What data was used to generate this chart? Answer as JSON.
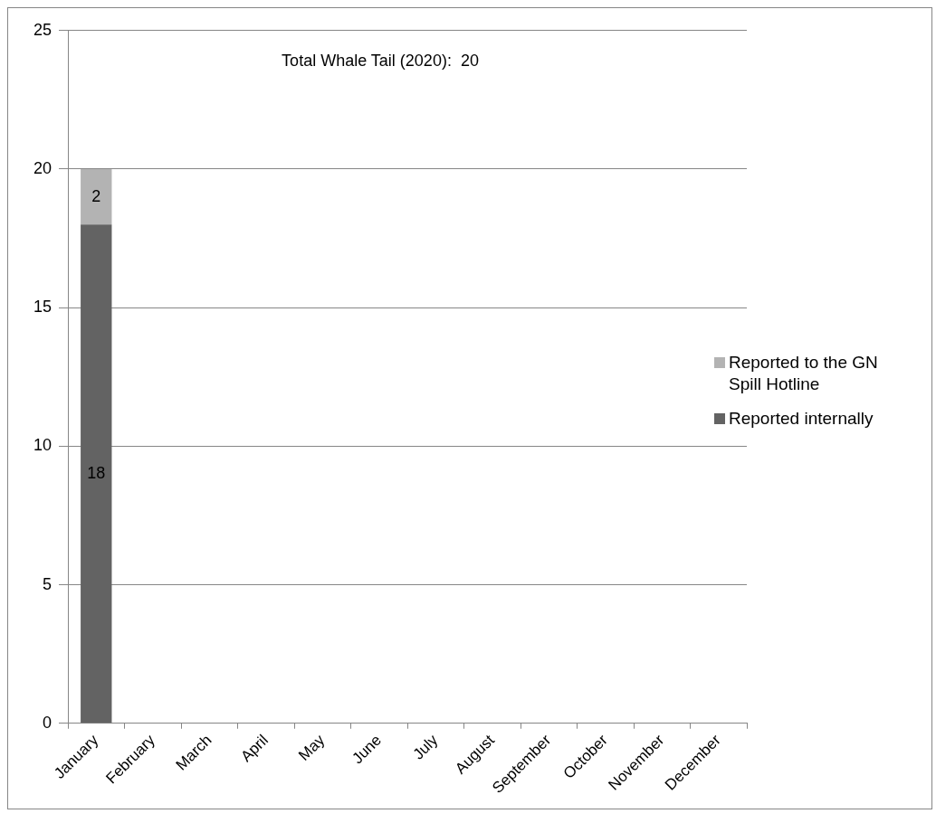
{
  "chart_data": {
    "type": "bar",
    "stacked": true,
    "categories": [
      "January",
      "February",
      "March",
      "April",
      "May",
      "June",
      "July",
      "August",
      "September",
      "October",
      "November",
      "December"
    ],
    "series": [
      {
        "name": "Reported internally",
        "color": "#636363",
        "values": [
          18,
          null,
          null,
          null,
          null,
          null,
          null,
          null,
          null,
          null,
          null,
          null
        ]
      },
      {
        "name": "Reported to the GN Spill Hotline",
        "color": "#b3b3b3",
        "values": [
          2,
          null,
          null,
          null,
          null,
          null,
          null,
          null,
          null,
          null,
          null,
          null
        ]
      }
    ],
    "ylim": [
      0,
      25
    ],
    "yticks": [
      0,
      5,
      10,
      15,
      20,
      25
    ],
    "grid": "y",
    "legend": "right",
    "data_labels": true,
    "annotations": [
      "Total Whale Tail (2020):  20"
    ]
  }
}
